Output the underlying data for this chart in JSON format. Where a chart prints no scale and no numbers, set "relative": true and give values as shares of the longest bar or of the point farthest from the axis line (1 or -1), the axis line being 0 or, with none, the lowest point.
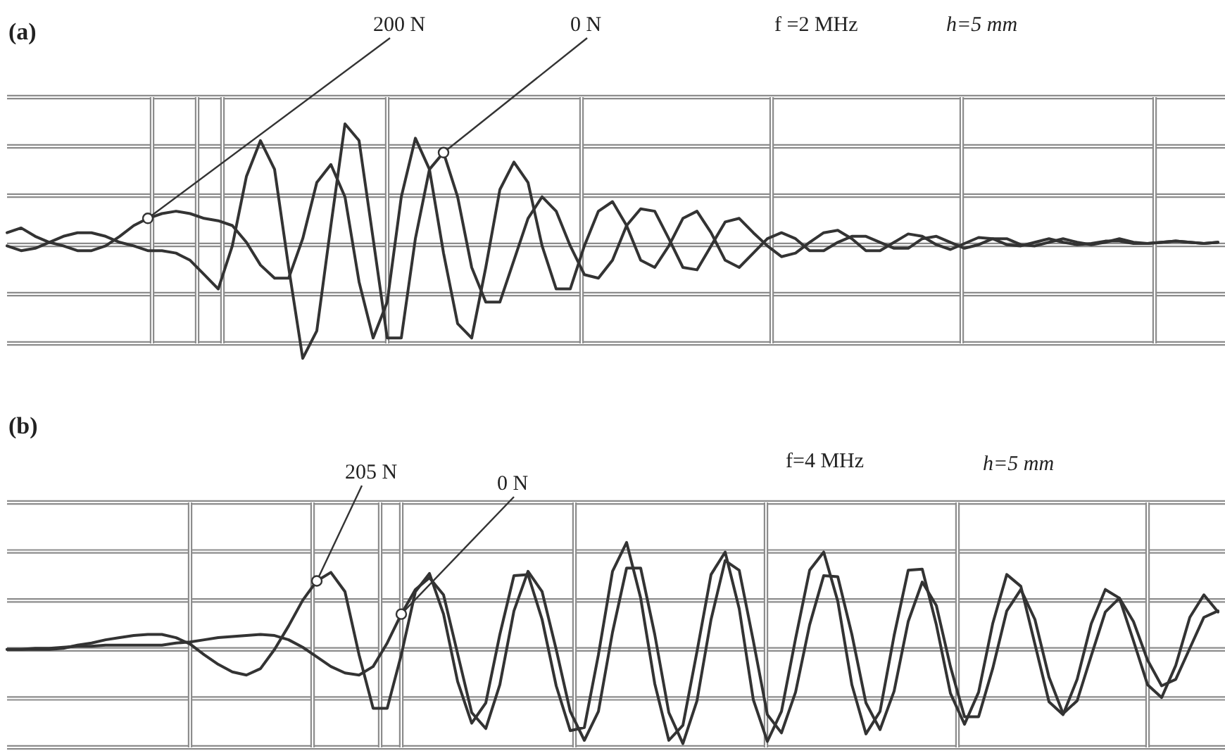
{
  "chart_data": [
    {
      "type": "line",
      "title": "(a)",
      "annotations": [
        "f =2 MHz",
        "h=5 mm"
      ],
      "relative": true,
      "grid": true,
      "categories": [
        null,
        null,
        null,
        null,
        null,
        null,
        null,
        null,
        null,
        null,
        null,
        null,
        null,
        null,
        null,
        null,
        null,
        null,
        null,
        null,
        null,
        null,
        null,
        null,
        null,
        null,
        null,
        null,
        null,
        null,
        null,
        null,
        null,
        null,
        null,
        null,
        null,
        null,
        null,
        null,
        null,
        null,
        null,
        null,
        null,
        null,
        null,
        null,
        null,
        null,
        null,
        null,
        null,
        null,
        null,
        null,
        null,
        null,
        null,
        null,
        null,
        null,
        null,
        null,
        null,
        null,
        null,
        null,
        null,
        null,
        null,
        null,
        null,
        null,
        null,
        null,
        null,
        null,
        null,
        null,
        null,
        null,
        null,
        null,
        null,
        null,
        null
      ],
      "series": [
        {
          "name": "200 N",
          "color": "#333333",
          "values": [
            0.09,
            0.13,
            0.06,
            0.01,
            -0.02,
            -0.06,
            -0.06,
            -0.02,
            0.06,
            0.15,
            0.21,
            0.25,
            0.27,
            0.25,
            0.21,
            0.19,
            0.15,
            0.01,
            -0.18,
            -0.29,
            -0.29,
            0.04,
            0.51,
            0.66,
            0.39,
            -0.32,
            -0.79,
            -0.49,
            0.39,
            0.88,
            0.62,
            -0.08,
            -0.67,
            -0.79,
            -0.2,
            0.45,
            0.68,
            0.51,
            -0.02,
            -0.38,
            -0.38,
            -0.02,
            0.27,
            0.35,
            0.15,
            -0.14,
            -0.2,
            -0.02,
            0.21,
            0.27,
            0.09,
            -0.14,
            -0.2,
            -0.08,
            0.04,
            0.09,
            0.04,
            -0.06,
            -0.06,
            0.01,
            0.06,
            0.06,
            0.01,
            -0.04,
            -0.04,
            0.04,
            0.06,
            0.01,
            -0.04,
            -0.01,
            0.04,
            0.04,
            -0.01,
            -0.02,
            0.01,
            0.04,
            0.01,
            -0.01,
            0.01,
            0.04,
            0.01,
            0,
            0.01,
            0.02,
            0.01,
            0,
            0.01
          ]
        },
        {
          "name": "0 N",
          "color": "#333333",
          "values": [
            -0.02,
            -0.06,
            -0.04,
            0.01,
            0.06,
            0.09,
            0.09,
            0.06,
            0.01,
            -0.02,
            -0.06,
            -0.06,
            -0.08,
            -0.14,
            -0.26,
            -0.38,
            -0.02,
            0.56,
            0.86,
            0.62,
            -0.2,
            -0.96,
            -0.73,
            0.15,
            1,
            0.86,
            0.04,
            -0.79,
            -0.79,
            0.04,
            0.62,
            0.76,
            0.39,
            -0.2,
            -0.49,
            -0.49,
            -0.14,
            0.21,
            0.39,
            0.27,
            -0.02,
            -0.26,
            -0.29,
            -0.14,
            0.15,
            0.29,
            0.27,
            0.04,
            -0.2,
            -0.22,
            -0.02,
            0.18,
            0.21,
            0.09,
            -0.02,
            -0.11,
            -0.08,
            0.01,
            0.09,
            0.11,
            0.04,
            -0.06,
            -0.06,
            0.01,
            0.08,
            0.06,
            -0.01,
            -0.05,
            0,
            0.05,
            0.04,
            -0.01,
            -0.02,
            0.01,
            0.04,
            0.01,
            -0.01,
            0,
            0.02,
            0.02,
            0,
            0,
            0.01,
            0.02,
            0.01,
            0,
            0.01
          ]
        }
      ]
    },
    {
      "type": "line",
      "title": "(b)",
      "annotations": [
        "f=4 MHz",
        "h=5 mm"
      ],
      "relative": true,
      "grid": true,
      "categories": [
        null,
        null,
        null,
        null,
        null,
        null,
        null,
        null,
        null,
        null,
        null,
        null,
        null,
        null,
        null,
        null,
        null,
        null,
        null,
        null,
        null,
        null,
        null,
        null,
        null,
        null,
        null,
        null,
        null,
        null,
        null,
        null,
        null,
        null,
        null,
        null,
        null,
        null,
        null,
        null,
        null,
        null,
        null,
        null,
        null,
        null,
        null,
        null,
        null,
        null,
        null,
        null,
        null,
        null,
        null,
        null,
        null,
        null,
        null,
        null,
        null,
        null,
        null,
        null,
        null,
        null,
        null,
        null,
        null,
        null,
        null,
        null,
        null,
        null,
        null,
        null,
        null,
        null,
        null,
        null,
        null,
        null,
        null,
        null,
        null,
        null,
        null
      ],
      "series": [
        {
          "name": "205 N",
          "color": "#333333",
          "values": [
            0,
            0,
            0,
            0,
            0.01,
            0.04,
            0.06,
            0.09,
            0.11,
            0.13,
            0.14,
            0.14,
            0.11,
            0.05,
            -0.05,
            -0.14,
            -0.21,
            -0.24,
            -0.18,
            0,
            0.22,
            0.46,
            0.64,
            0.72,
            0.54,
            -0.05,
            -0.55,
            -0.55,
            -0.05,
            0.54,
            0.71,
            0.33,
            -0.3,
            -0.69,
            -0.5,
            0.14,
            0.69,
            0.7,
            0.28,
            -0.34,
            -0.76,
            -0.73,
            -0.05,
            0.73,
            1,
            0.48,
            -0.32,
            -0.85,
            -0.71,
            -0.02,
            0.7,
            0.91,
            0.38,
            -0.47,
            -0.86,
            -0.58,
            0.1,
            0.74,
            0.91,
            0.45,
            -0.33,
            -0.79,
            -0.58,
            0.13,
            0.74,
            0.75,
            0.23,
            -0.41,
            -0.7,
            -0.4,
            0.24,
            0.7,
            0.59,
            0.05,
            -0.49,
            -0.61,
            -0.28,
            0.24,
            0.56,
            0.48,
            0.08,
            -0.33,
            -0.45,
            -0.15,
            0.3,
            0.51,
            0.35
          ]
        },
        {
          "name": "0 N",
          "color": "#333333",
          "values": [
            0,
            0,
            0.01,
            0.01,
            0.02,
            0.03,
            0.03,
            0.04,
            0.04,
            0.04,
            0.04,
            0.04,
            0.06,
            0.07,
            0.09,
            0.11,
            0.12,
            0.13,
            0.14,
            0.13,
            0.09,
            0.02,
            -0.07,
            -0.16,
            -0.22,
            -0.24,
            -0.16,
            0.06,
            0.33,
            0.56,
            0.67,
            0.51,
            -0.04,
            -0.59,
            -0.74,
            -0.33,
            0.36,
            0.73,
            0.54,
            0,
            -0.58,
            -0.85,
            -0.58,
            0.16,
            0.76,
            0.76,
            0.14,
            -0.59,
            -0.88,
            -0.48,
            0.28,
            0.83,
            0.74,
            0.08,
            -0.61,
            -0.78,
            -0.4,
            0.23,
            0.69,
            0.68,
            0.14,
            -0.5,
            -0.75,
            -0.39,
            0.26,
            0.63,
            0.41,
            -0.16,
            -0.63,
            -0.63,
            -0.18,
            0.36,
            0.56,
            0.28,
            -0.26,
            -0.6,
            -0.48,
            -0.06,
            0.35,
            0.48,
            0.26,
            -0.1,
            -0.34,
            -0.28,
            0.01,
            0.3,
            0.36
          ]
        }
      ]
    }
  ]
}
